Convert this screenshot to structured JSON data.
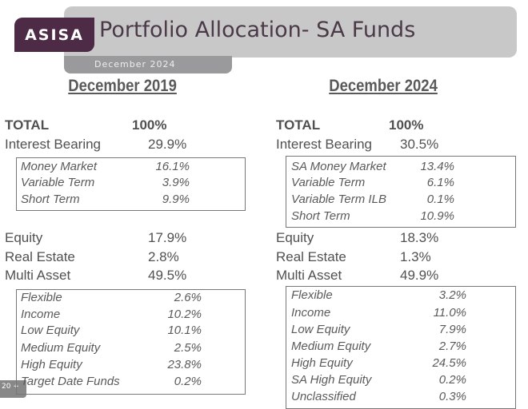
{
  "header": {
    "logo_text": "ASISA",
    "title": "Portfolio Allocation-  SA Funds",
    "subtitle": "December 2024",
    "brand_color": "#4d2a45"
  },
  "columns": [
    {
      "heading": "December 2019",
      "top": [
        {
          "label": "TOTAL",
          "value": "100%",
          "bold": true
        },
        {
          "label": "Interest Bearing",
          "value": "29.9%"
        }
      ],
      "interest_breakdown": [
        {
          "label": "Money Market",
          "value": "16.1%"
        },
        {
          "label": "Variable Term",
          "value": "3.9%"
        },
        {
          "label": "Short Term",
          "value": "9.9%"
        }
      ],
      "middle": [
        {
          "label": "Equity",
          "value": "17.9%"
        },
        {
          "label": "Real Estate",
          "value": "2.8%"
        },
        {
          "label": "Multi Asset",
          "value": "49.5%"
        }
      ],
      "multi_breakdown": [
        {
          "label": "Flexible",
          "value": "2.6%"
        },
        {
          "label": "Income",
          "value": "10.2%"
        },
        {
          "label": "Low Equity",
          "value": "10.1%"
        },
        {
          "label": "Medium Equity",
          "value": "2.5%"
        },
        {
          "label": "High Equity",
          "value": "23.8%"
        },
        {
          "label": "Target Date Funds",
          "value": "0.2%"
        }
      ]
    },
    {
      "heading": "December 2024",
      "top": [
        {
          "label": "TOTAL",
          "value": "100%",
          "bold": true
        },
        {
          "label": "Interest Bearing",
          "value": "30.5%"
        }
      ],
      "interest_breakdown": [
        {
          "label": "SA Money Market",
          "value": "13.4%"
        },
        {
          "label": "Variable Term",
          "value": "6.1%"
        },
        {
          "label": "Variable Term ILB",
          "value": "0.1%"
        },
        {
          "label": "Short Term",
          "value": "10.9%"
        }
      ],
      "middle": [
        {
          "label": "Equity",
          "value": "18.3%"
        },
        {
          "label": "Real Estate",
          "value": "1.3%"
        },
        {
          "label": "Multi Asset",
          "value": "49.9%"
        }
      ],
      "multi_breakdown": [
        {
          "label": "Flexible",
          "value": "3.2%"
        },
        {
          "label": "Income",
          "value": "11.0%"
        },
        {
          "label": "Low Equity",
          "value": "7.9%"
        },
        {
          "label": "Medium Equity",
          "value": "2.7%"
        },
        {
          "label": "High Equity",
          "value": "24.5%"
        },
        {
          "label": "SA High Equity",
          "value": "0.2%"
        },
        {
          "label": "Unclassified",
          "value": "0.3%"
        }
      ]
    }
  ],
  "slide_badge": "20"
}
